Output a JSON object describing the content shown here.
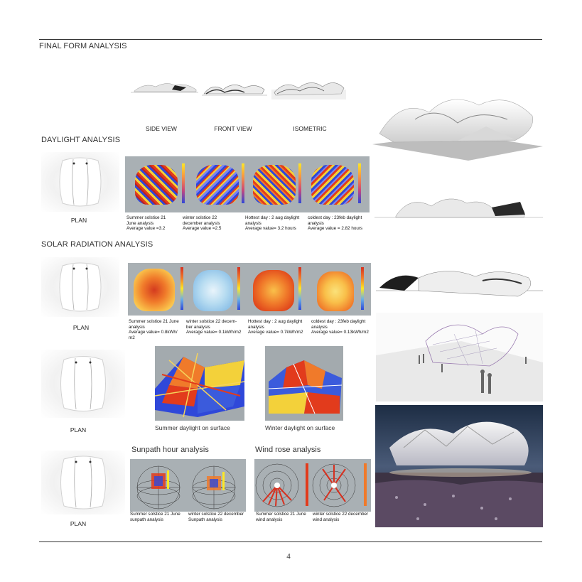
{
  "section_titles": {
    "final_form": "FINAL FORM ANALYSIS",
    "daylight": "DAYLIGHT ANALYSIS",
    "solar": "SOLAR RADIATION ANALYSIS"
  },
  "views": {
    "side": "SIDE VIEW",
    "front": "FRONT VIEW",
    "isometric": "ISOMETRIC"
  },
  "plan_label": "PLAN",
  "daylight_captions": [
    {
      "l1": "Summer solstice 21",
      "l2": "June analysis",
      "l3": "Average value =3.2"
    },
    {
      "l1": "winter solstice 22",
      "l2": "december analysis",
      "l3": "Average value =2.5"
    },
    {
      "l1": "Hottest day : 2 aug daylight",
      "l2": "analysis",
      "l3": "Average value= 3.2 hours"
    },
    {
      "l1": "coldest day : 23feb daylight",
      "l2": "analysis",
      "l3": "Average value = 2.82 hours"
    }
  ],
  "solar_captions": [
    {
      "l1": "Summer solstice 21 June",
      "l2": "analysis",
      "l3": "Average value= 0.8kWh/",
      "l4": "m2"
    },
    {
      "l1": "winter solstice 22 decem-",
      "l2": "ber analysis",
      "l3": "Average value= 0.1kWh/m2"
    },
    {
      "l1": "Hottest day : 2 aug daylight",
      "l2": "analysis",
      "l3": "Average value= 0.7kWh/m2"
    },
    {
      "l1": "coldest day : 23feb daylight",
      "l2": "analysis",
      "l3": "Average value= 0.13kWh/m2"
    }
  ],
  "surface_labels": {
    "summer": "Summer daylight on surface",
    "winter": "Winter daylight on surface"
  },
  "sunpath": {
    "title": "Sunpath hour analysis",
    "cap1_l1": "Summer solstice 21 June",
    "cap1_l2": "sunpath analysis",
    "cap2_l1": "winter solstice 22 december",
    "cap2_l2": "Sunpath analysis"
  },
  "windrose": {
    "title": "Wind rose analysis",
    "cap1_l1": "Summer solstice 21 June",
    "cap1_l2": "wind analysis",
    "cap2_l1": "winter solstice 22 december",
    "cap2_l2": "wind analysis"
  },
  "page_number": "4"
}
